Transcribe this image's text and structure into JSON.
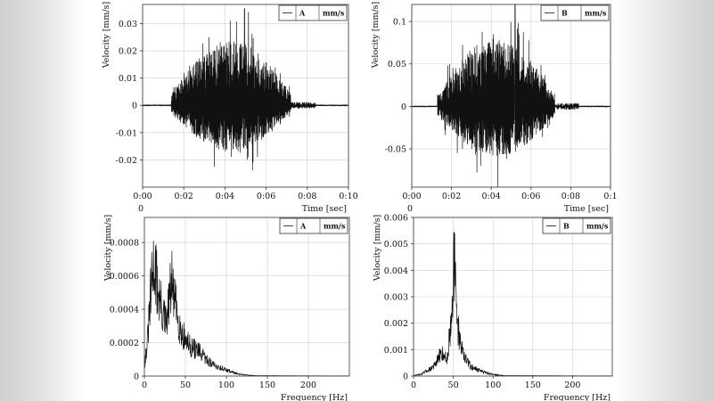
{
  "chart_data": [
    {
      "id": "time-a",
      "type": "line",
      "legend": {
        "series": "A",
        "unit": "mm/s",
        "placement": "top-right"
      },
      "xlabel": "Time [sec]",
      "ylabel": "Velocity [mm/s]",
      "xlim": [
        0,
        0.1
      ],
      "ylim": [
        -0.03,
        0.037
      ],
      "xticks": [
        0,
        0.02,
        0.04,
        0.06,
        0.08,
        0.1
      ],
      "xtick_labels": [
        "0:00",
        "0:02",
        "0:04",
        "0:06",
        "0:08",
        "0:10"
      ],
      "extra_tick_label": "0",
      "yticks": [
        -0.02,
        -0.01,
        0,
        0.01,
        0.02,
        0.03
      ],
      "ytick_labels": [
        "-0.02",
        "-0.01",
        "0",
        "0.01",
        "0.02",
        "0.03"
      ],
      "grid": true,
      "signal": {
        "start": 0.014,
        "end": 0.072,
        "peak_pos": 0.0355,
        "peak_neg": -0.0255,
        "peak_time": 0.0495,
        "seed": 11
      },
      "series": [
        {
          "name": "A",
          "color": "#111111"
        }
      ]
    },
    {
      "id": "time-b",
      "type": "line",
      "legend": {
        "series": "B",
        "unit": "mm/s",
        "placement": "top-right"
      },
      "xlabel": "Time [sec]",
      "ylabel": "Velocity [mm/s]",
      "xlim": [
        0,
        0.1
      ],
      "ylim": [
        -0.095,
        0.12
      ],
      "xticks": [
        0,
        0.02,
        0.04,
        0.06,
        0.08,
        0.1
      ],
      "xtick_labels": [
        "0:00",
        "0:02",
        "0:04",
        "0:06",
        "0:08",
        "0:1"
      ],
      "extra_tick_label": "0",
      "yticks": [
        -0.05,
        0,
        0.05,
        0.1
      ],
      "ytick_labels": [
        "-0.05",
        "0",
        "0.05",
        "0.1"
      ],
      "grid": true,
      "signal": {
        "start": 0.013,
        "end": 0.072,
        "peak_pos": 0.12,
        "peak_neg": -0.09,
        "peak_time": 0.052,
        "seed": 23
      },
      "series": [
        {
          "name": "B",
          "color": "#111111"
        }
      ]
    },
    {
      "id": "freq-a",
      "type": "line",
      "legend": {
        "series": "A",
        "unit": "mm/s",
        "placement": "top-right"
      },
      "xlabel": "Frequency [Hz]",
      "ylabel": "Velocity [mm/s]",
      "xlim": [
        0,
        250
      ],
      "ylim": [
        0,
        0.00095
      ],
      "xticks": [
        0,
        50,
        100,
        150,
        200
      ],
      "xtick_labels": [
        "0",
        "50",
        "100",
        "150",
        "200"
      ],
      "yticks": [
        0,
        0.0002,
        0.0004,
        0.0006,
        0.0008
      ],
      "ytick_labels": [
        "0",
        "0.0002",
        "0.0004",
        "0.0006",
        "0.0008"
      ],
      "grid": true,
      "spectrum": {
        "envelope": [
          [
            0,
            8e-05
          ],
          [
            4,
            0.0003
          ],
          [
            8,
            0.0007
          ],
          [
            12,
            0.00095
          ],
          [
            16,
            0.00072
          ],
          [
            22,
            0.00052
          ],
          [
            27,
            0.00042
          ],
          [
            33,
            0.00078
          ],
          [
            38,
            0.00058
          ],
          [
            45,
            0.00036
          ],
          [
            55,
            0.00025
          ],
          [
            65,
            0.00021
          ],
          [
            75,
            0.00014
          ],
          [
            85,
            9e-05
          ],
          [
            100,
            5e-05
          ],
          [
            115,
            1.5e-05
          ],
          [
            135,
            3e-06
          ],
          [
            250,
            1e-06
          ]
        ],
        "seed": 31
      },
      "series": [
        {
          "name": "A",
          "color": "#111111"
        }
      ]
    },
    {
      "id": "freq-b",
      "type": "line",
      "legend": {
        "series": "B",
        "unit": "mm/s",
        "placement": "top-right"
      },
      "xlabel": "Frequency [Hz]",
      "ylabel": "Velocity [mm/s]",
      "xlim": [
        0,
        250
      ],
      "ylim": [
        0,
        0.006
      ],
      "xticks": [
        0,
        50,
        100,
        150,
        200
      ],
      "xtick_labels": [
        "0",
        "50",
        "100",
        "150",
        "200"
      ],
      "yticks": [
        0,
        0.001,
        0.002,
        0.003,
        0.004,
        0.005,
        0.006
      ],
      "ytick_labels": [
        "0",
        "0.001",
        "0.002",
        "0.003",
        "0.004",
        "0.005",
        "0.006"
      ],
      "grid": true,
      "spectrum": {
        "envelope": [
          [
            0,
            3e-05
          ],
          [
            10,
            0.0001
          ],
          [
            20,
            0.00035
          ],
          [
            28,
            0.0006
          ],
          [
            33,
            0.0011
          ],
          [
            37,
            0.0012
          ],
          [
            42,
            0.0008
          ],
          [
            46,
            0.0024
          ],
          [
            49,
            0.0045
          ],
          [
            51,
            0.006
          ],
          [
            53,
            0.0045
          ],
          [
            56,
            0.0025
          ],
          [
            60,
            0.0016
          ],
          [
            65,
            0.0009
          ],
          [
            72,
            0.0005
          ],
          [
            80,
            0.00035
          ],
          [
            90,
            0.00018
          ],
          [
            100,
            8e-05
          ],
          [
            115,
            2e-05
          ],
          [
            250,
            5e-06
          ]
        ],
        "seed": 47
      },
      "series": [
        {
          "name": "B",
          "color": "#111111"
        }
      ]
    }
  ]
}
